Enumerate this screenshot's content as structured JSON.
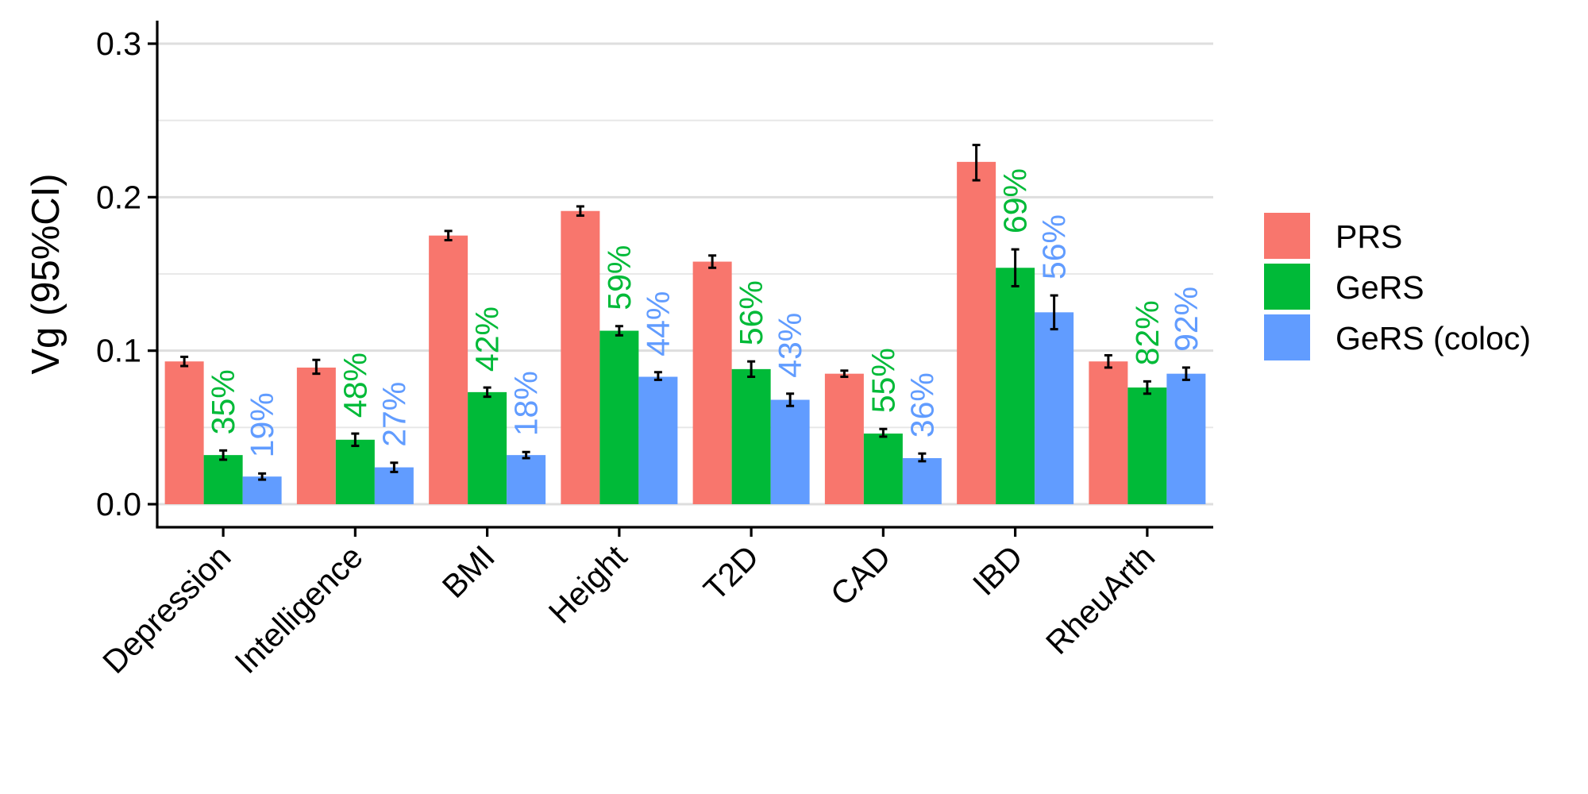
{
  "chart_data": {
    "type": "bar",
    "title": "",
    "xlabel": "",
    "ylabel": "Vg (95%CI)",
    "ylim": [
      -0.015,
      0.315
    ],
    "yticks": [
      0.0,
      0.1,
      0.2,
      0.3
    ],
    "ytick_labels": [
      "0.0",
      "0.1",
      "0.2",
      "0.3"
    ],
    "grid": true,
    "legend_position": "right",
    "categories": [
      "Depression",
      "Intelligence",
      "BMI",
      "Height",
      "T2D",
      "CAD",
      "IBD",
      "RheuArth"
    ],
    "series": [
      {
        "name": "PRS",
        "color": "#F8766D",
        "values": [
          0.093,
          0.089,
          0.175,
          0.191,
          0.158,
          0.085,
          0.223,
          0.093
        ],
        "ci_low": [
          0.09,
          0.085,
          0.172,
          0.188,
          0.154,
          0.083,
          0.211,
          0.089
        ],
        "ci_high": [
          0.096,
          0.094,
          0.178,
          0.194,
          0.162,
          0.087,
          0.234,
          0.097
        ]
      },
      {
        "name": "GeRS",
        "color": "#00BA38",
        "values": [
          0.032,
          0.042,
          0.073,
          0.113,
          0.088,
          0.046,
          0.154,
          0.076
        ],
        "ci_low": [
          0.029,
          0.038,
          0.07,
          0.11,
          0.083,
          0.044,
          0.142,
          0.072
        ],
        "ci_high": [
          0.035,
          0.046,
          0.076,
          0.116,
          0.093,
          0.049,
          0.166,
          0.08
        ],
        "percent_labels": [
          "35%",
          "48%",
          "42%",
          "59%",
          "56%",
          "55%",
          "69%",
          "82%"
        ],
        "percent_color": "#00BA38"
      },
      {
        "name": "GeRS (coloc)",
        "color": "#619CFF",
        "values": [
          0.018,
          0.024,
          0.032,
          0.083,
          0.068,
          0.03,
          0.125,
          0.085
        ],
        "ci_low": [
          0.016,
          0.021,
          0.03,
          0.081,
          0.064,
          0.028,
          0.114,
          0.081
        ],
        "ci_high": [
          0.02,
          0.027,
          0.034,
          0.086,
          0.072,
          0.033,
          0.136,
          0.089
        ],
        "percent_labels": [
          "19%",
          "27%",
          "18%",
          "44%",
          "43%",
          "36%",
          "56%",
          "92%"
        ],
        "percent_color": "#619CFF"
      }
    ]
  }
}
